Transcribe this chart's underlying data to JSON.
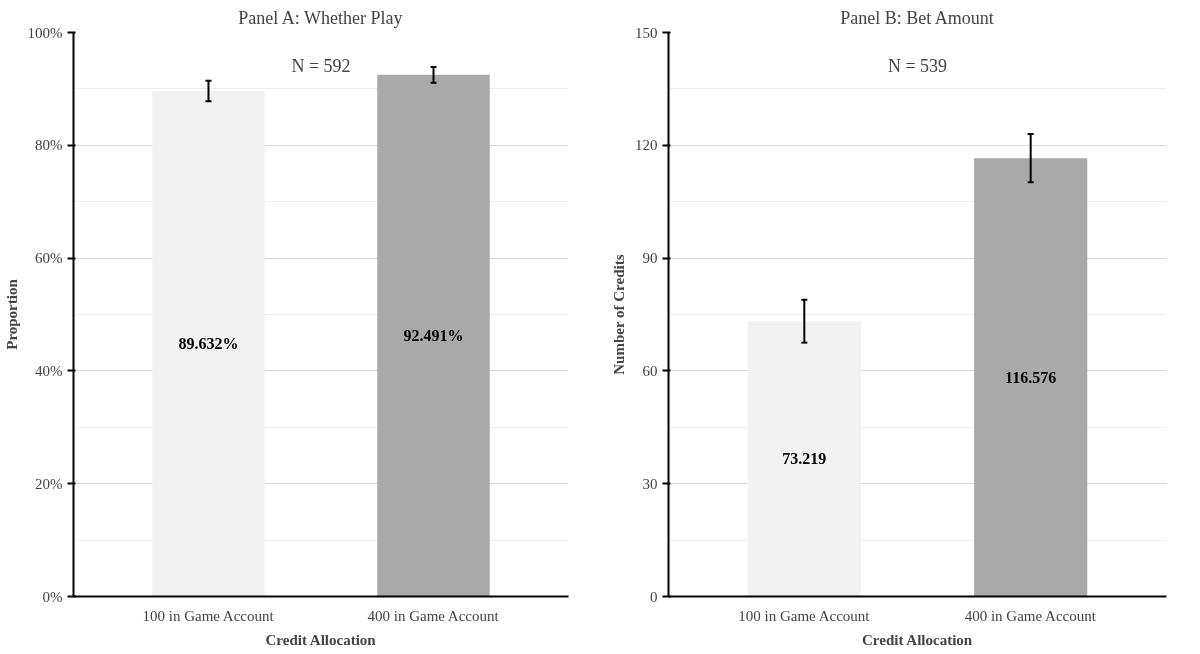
{
  "chart_data": [
    {
      "type": "bar",
      "title": "Panel A: Whether Play",
      "xlabel": "Credit Allocation",
      "ylabel": "Proportion",
      "categories": [
        "100 in Game Account",
        "400 in Game Account"
      ],
      "values": [
        89.632,
        92.491
      ],
      "colors": [
        "#f2f2f2",
        "#a9a9a9"
      ],
      "errors": [
        1.8,
        1.4
      ],
      "value_labels": [
        "89.632%",
        "92.491%"
      ],
      "ylim": [
        0,
        100
      ],
      "yticks": [
        {
          "value": 0,
          "label": "0%"
        },
        {
          "value": 20,
          "label": "20%"
        },
        {
          "value": 40,
          "label": "40%"
        },
        {
          "value": 60,
          "label": "60%"
        },
        {
          "value": 80,
          "label": "80%"
        },
        {
          "value": 100,
          "label": "100%"
        }
      ],
      "grid": "y",
      "annotations": [
        "N = 592"
      ]
    },
    {
      "type": "bar",
      "title": "Panel B: Bet Amount",
      "xlabel": "Credit Allocation",
      "ylabel": "Number of Credits",
      "categories": [
        "100 in Game Account",
        "400 in Game Account"
      ],
      "values": [
        73.219,
        116.576
      ],
      "colors": [
        "#f2f2f2",
        "#a9a9a9"
      ],
      "errors": [
        5.7,
        6.4
      ],
      "value_labels": [
        "73.219",
        "116.576"
      ],
      "ylim": [
        0,
        150
      ],
      "yticks": [
        0,
        30,
        60,
        90,
        120,
        150
      ],
      "grid": "y",
      "annotations": [
        "N = 539"
      ]
    }
  ]
}
